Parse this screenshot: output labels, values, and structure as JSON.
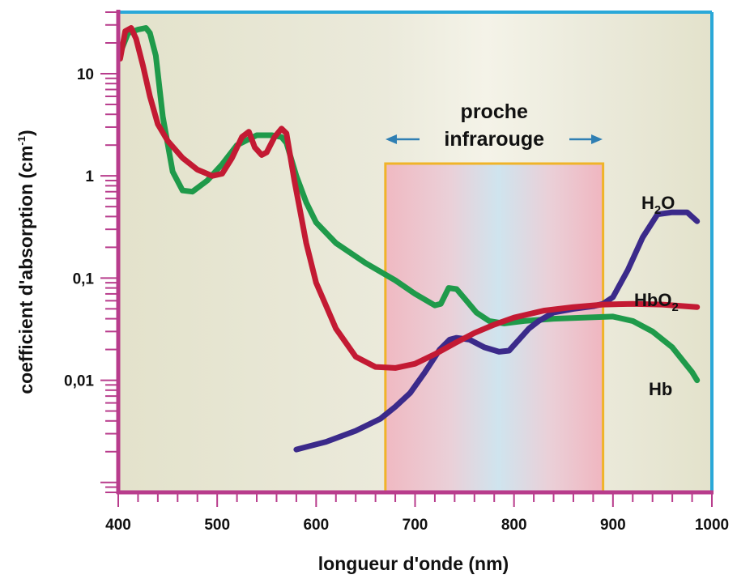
{
  "chart_data": {
    "type": "line",
    "xlabel": "longueur d'onde (nm)",
    "ylabel_main": "coefficient d'absorption (cm",
    "ylabel_sup": "-1",
    "ylabel_close": ")",
    "xlim": [
      400,
      1000
    ],
    "ylim": [
      0.0008,
      40
    ],
    "y_scale": "log",
    "x_ticks": [
      400,
      500,
      600,
      700,
      800,
      900,
      1000
    ],
    "x_tick_labels": [
      "400",
      "500",
      "600",
      "700",
      "800",
      "900",
      "1000"
    ],
    "y_ticks": [
      10,
      1,
      0.1,
      0.01
    ],
    "y_tick_labels": [
      "10",
      "1",
      "0,1",
      "0,01"
    ],
    "band": {
      "x_range": [
        670,
        890
      ],
      "label_line1": "proche",
      "label_line2": "infrarouge"
    },
    "colors": {
      "axis_left_bottom": "#b83c8c",
      "axis_top_right": "#2aa8d8",
      "plot_bg": "#e8e7d3",
      "band_border": "#f0b429",
      "band_arrow": "#2f7fb3",
      "Hb": "#1f9a4a",
      "HbO2": "#c31a33",
      "H2O": "#3b2a8a"
    },
    "series": [
      {
        "name": "Hb",
        "label_main": "Hb",
        "color": "#1f9a4a",
        "x": [
          402,
          410,
          420,
          428,
          432,
          438,
          445,
          455,
          465,
          475,
          490,
          505,
          520,
          540,
          555,
          565,
          570,
          580,
          590,
          600,
          620,
          650,
          680,
          700,
          720,
          726,
          734,
          742,
          752,
          762,
          775,
          790,
          810,
          840,
          870,
          900,
          920,
          940,
          960,
          980,
          985
        ],
        "y": [
          16,
          25,
          27,
          28,
          25,
          15,
          3.8,
          1.1,
          0.72,
          0.7,
          0.9,
          1.3,
          2.0,
          2.5,
          2.5,
          2.4,
          2.1,
          1.0,
          0.55,
          0.35,
          0.22,
          0.14,
          0.095,
          0.07,
          0.054,
          0.056,
          0.08,
          0.078,
          0.06,
          0.046,
          0.038,
          0.036,
          0.038,
          0.04,
          0.041,
          0.042,
          0.038,
          0.03,
          0.021,
          0.012,
          0.01
        ]
      },
      {
        "name": "HbO2",
        "label_main": "HbO",
        "label_sub": "2",
        "color": "#c31a33",
        "x": [
          402,
          407,
          413,
          418,
          425,
          432,
          440,
          450,
          465,
          480,
          495,
          505,
          515,
          525,
          532,
          538,
          545,
          550,
          558,
          565,
          570,
          578,
          590,
          600,
          620,
          640,
          660,
          680,
          700,
          720,
          740,
          760,
          780,
          800,
          830,
          860,
          890,
          920,
          950,
          985
        ],
        "y": [
          14,
          26,
          28,
          22,
          12,
          6,
          3.2,
          2.2,
          1.5,
          1.15,
          1.0,
          1.05,
          1.5,
          2.4,
          2.7,
          1.9,
          1.6,
          1.7,
          2.4,
          2.9,
          2.6,
          0.9,
          0.22,
          0.09,
          0.032,
          0.017,
          0.0135,
          0.0132,
          0.0145,
          0.018,
          0.023,
          0.029,
          0.035,
          0.041,
          0.048,
          0.052,
          0.055,
          0.056,
          0.055,
          0.052
        ]
      },
      {
        "name": "H2O",
        "label_main": "H",
        "label_sub": "2",
        "label_end": "O",
        "color": "#3b2a8a",
        "x": [
          580,
          610,
          640,
          665,
          680,
          695,
          710,
          725,
          735,
          742,
          755,
          770,
          785,
          795,
          805,
          815,
          825,
          840,
          860,
          880,
          890,
          900,
          915,
          930,
          945,
          960,
          975,
          985
        ],
        "y": [
          0.0021,
          0.0025,
          0.0032,
          0.0042,
          0.0055,
          0.0075,
          0.012,
          0.02,
          0.025,
          0.026,
          0.025,
          0.021,
          0.019,
          0.0195,
          0.025,
          0.032,
          0.038,
          0.046,
          0.05,
          0.053,
          0.056,
          0.065,
          0.12,
          0.25,
          0.42,
          0.44,
          0.44,
          0.36
        ]
      }
    ]
  }
}
